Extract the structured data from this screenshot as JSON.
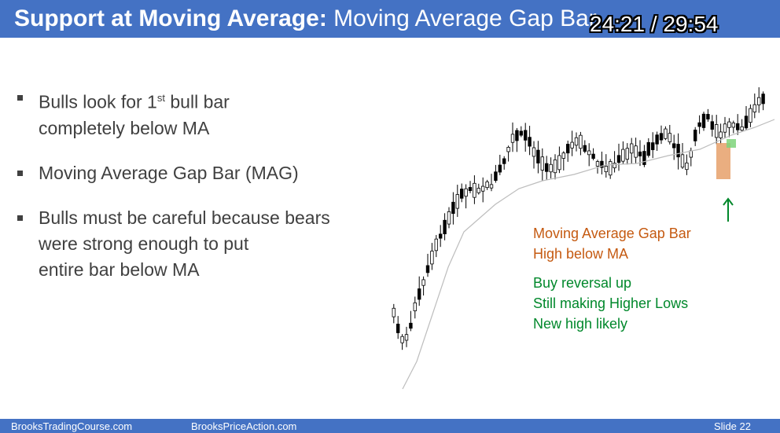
{
  "header": {
    "title_bold": "Support at Moving Average:",
    "title_rest": "Moving Average Gap Bar",
    "timer": "24:21 / 29:54"
  },
  "bullets": [
    {
      "line1_pre": "Bulls look for 1",
      "line1_sup": "st",
      "line1_post": " bull bar",
      "line2": "completely below MA"
    },
    {
      "text": "Moving Average Gap Bar (MAG)"
    },
    {
      "line1": "Bulls must be careful because bears",
      "line2": "were strong enough to put",
      "line3": "entire bar below MA"
    }
  ],
  "annotations": {
    "orange": [
      "Moving Average Gap Bar",
      "High below MA"
    ],
    "green": [
      "Buy reversal up",
      "Still making Higher Lows",
      "New high likely"
    ]
  },
  "footer": {
    "left": "BrooksTradingCourse.com",
    "middle": "BrooksPriceAction.com",
    "right": "Slide  22"
  },
  "colors": {
    "header_bg": "#4472c4",
    "orange_text": "#c55a11",
    "green_text": "#00882b",
    "ma_line": "#bdbdbd",
    "highlight_orange": "#e6a06a",
    "highlight_green": "#7ed47a"
  }
}
